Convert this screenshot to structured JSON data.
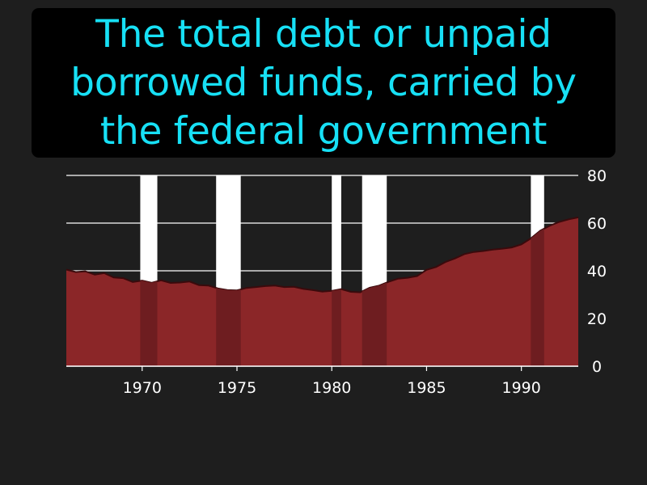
{
  "caption": "The total debt or unpaid borrowed funds, carried by the federal government",
  "chart_data": {
    "type": "area",
    "title": "",
    "xlabel": "",
    "ylabel": "",
    "xlim": [
      1966,
      1993
    ],
    "ylim": [
      0,
      80
    ],
    "x_ticks": [
      1970,
      1975,
      1980,
      1985,
      1990
    ],
    "y_ticks": [
      0,
      20,
      40,
      60,
      80
    ],
    "y_axis_side": "right",
    "grid": true,
    "series": [
      {
        "values": [
          {
            "x": 1966.0,
            "y": 40.5
          },
          {
            "x": 1966.5,
            "y": 39.5
          },
          {
            "x": 1967.0,
            "y": 39.8
          },
          {
            "x": 1967.5,
            "y": 38.4
          },
          {
            "x": 1968.0,
            "y": 39.0
          },
          {
            "x": 1968.5,
            "y": 37.2
          },
          {
            "x": 1969.0,
            "y": 36.9
          },
          {
            "x": 1969.5,
            "y": 35.3
          },
          {
            "x": 1970.0,
            "y": 35.9
          },
          {
            "x": 1970.5,
            "y": 35.0
          },
          {
            "x": 1971.0,
            "y": 36.0
          },
          {
            "x": 1971.5,
            "y": 34.9
          },
          {
            "x": 1972.0,
            "y": 35.1
          },
          {
            "x": 1972.5,
            "y": 35.5
          },
          {
            "x": 1973.0,
            "y": 34.0
          },
          {
            "x": 1973.5,
            "y": 33.8
          },
          {
            "x": 1974.0,
            "y": 32.6
          },
          {
            "x": 1974.5,
            "y": 31.9
          },
          {
            "x": 1975.0,
            "y": 31.8
          },
          {
            "x": 1975.5,
            "y": 32.8
          },
          {
            "x": 1976.0,
            "y": 33.2
          },
          {
            "x": 1976.5,
            "y": 33.6
          },
          {
            "x": 1977.0,
            "y": 33.8
          },
          {
            "x": 1977.5,
            "y": 33.2
          },
          {
            "x": 1978.0,
            "y": 33.3
          },
          {
            "x": 1978.5,
            "y": 32.4
          },
          {
            "x": 1979.0,
            "y": 31.9
          },
          {
            "x": 1979.5,
            "y": 31.3
          },
          {
            "x": 1980.0,
            "y": 31.6
          },
          {
            "x": 1980.5,
            "y": 32.3
          },
          {
            "x": 1981.0,
            "y": 31.2
          },
          {
            "x": 1981.5,
            "y": 31.0
          },
          {
            "x": 1982.0,
            "y": 32.9
          },
          {
            "x": 1982.5,
            "y": 33.8
          },
          {
            "x": 1983.0,
            "y": 35.4
          },
          {
            "x": 1983.5,
            "y": 36.7
          },
          {
            "x": 1984.0,
            "y": 37.1
          },
          {
            "x": 1984.5,
            "y": 37.8
          },
          {
            "x": 1985.0,
            "y": 40.4
          },
          {
            "x": 1985.5,
            "y": 41.6
          },
          {
            "x": 1986.0,
            "y": 43.7
          },
          {
            "x": 1986.5,
            "y": 45.2
          },
          {
            "x": 1987.0,
            "y": 47.0
          },
          {
            "x": 1987.5,
            "y": 47.9
          },
          {
            "x": 1988.0,
            "y": 48.3
          },
          {
            "x": 1988.5,
            "y": 48.9
          },
          {
            "x": 1989.0,
            "y": 49.3
          },
          {
            "x": 1989.5,
            "y": 49.8
          },
          {
            "x": 1990.0,
            "y": 51.1
          },
          {
            "x": 1990.5,
            "y": 53.6
          },
          {
            "x": 1991.0,
            "y": 56.8
          },
          {
            "x": 1991.5,
            "y": 58.9
          },
          {
            "x": 1992.0,
            "y": 60.5
          },
          {
            "x": 1992.5,
            "y": 61.6
          },
          {
            "x": 1993.0,
            "y": 62.4
          }
        ]
      }
    ],
    "shaded_periods": [
      [
        1969.9,
        1970.8
      ],
      [
        1973.9,
        1975.2
      ],
      [
        1980.0,
        1980.5
      ],
      [
        1981.6,
        1982.9
      ],
      [
        1990.5,
        1991.2
      ]
    ],
    "colors": {
      "area_fill": "#8b2628",
      "area_line": "#3a0a0c",
      "band": "#ffffff",
      "band_overlap": "#6e1d20",
      "grid": "#ffffff",
      "background": "#1e1e1e",
      "caption_text": "#17e0f5"
    }
  }
}
